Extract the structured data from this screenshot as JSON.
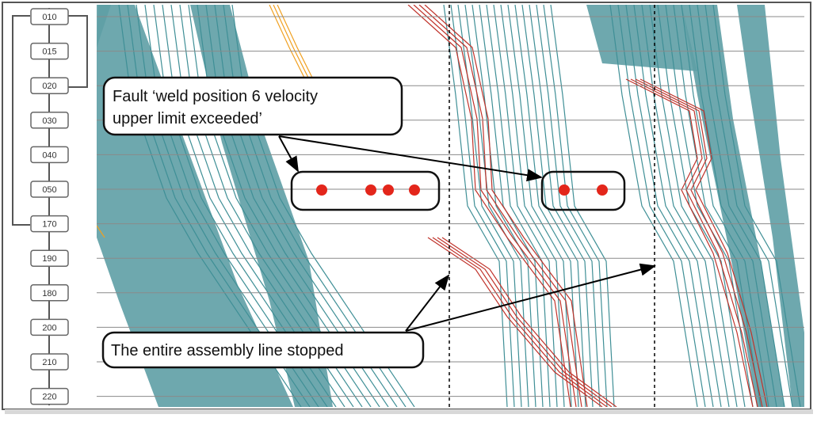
{
  "stations": [
    "010",
    "015",
    "020",
    "030",
    "040",
    "050",
    "170",
    "190",
    "180",
    "200",
    "210",
    "220"
  ],
  "fault_station": "050",
  "fault_callout": {
    "line1": "Fault  ‘weld position 6 velocity",
    "line2": "upper limit exceeded’"
  },
  "stop_callout": {
    "text": "The entire assembly line stopped"
  },
  "colors": {
    "teal": "#3f8f96",
    "teal_band": "#5e9fa5",
    "red": "#c0332b",
    "fault_dot": "#e3261b",
    "orange": "#f0a020",
    "grid": "#8a8a8a"
  }
}
